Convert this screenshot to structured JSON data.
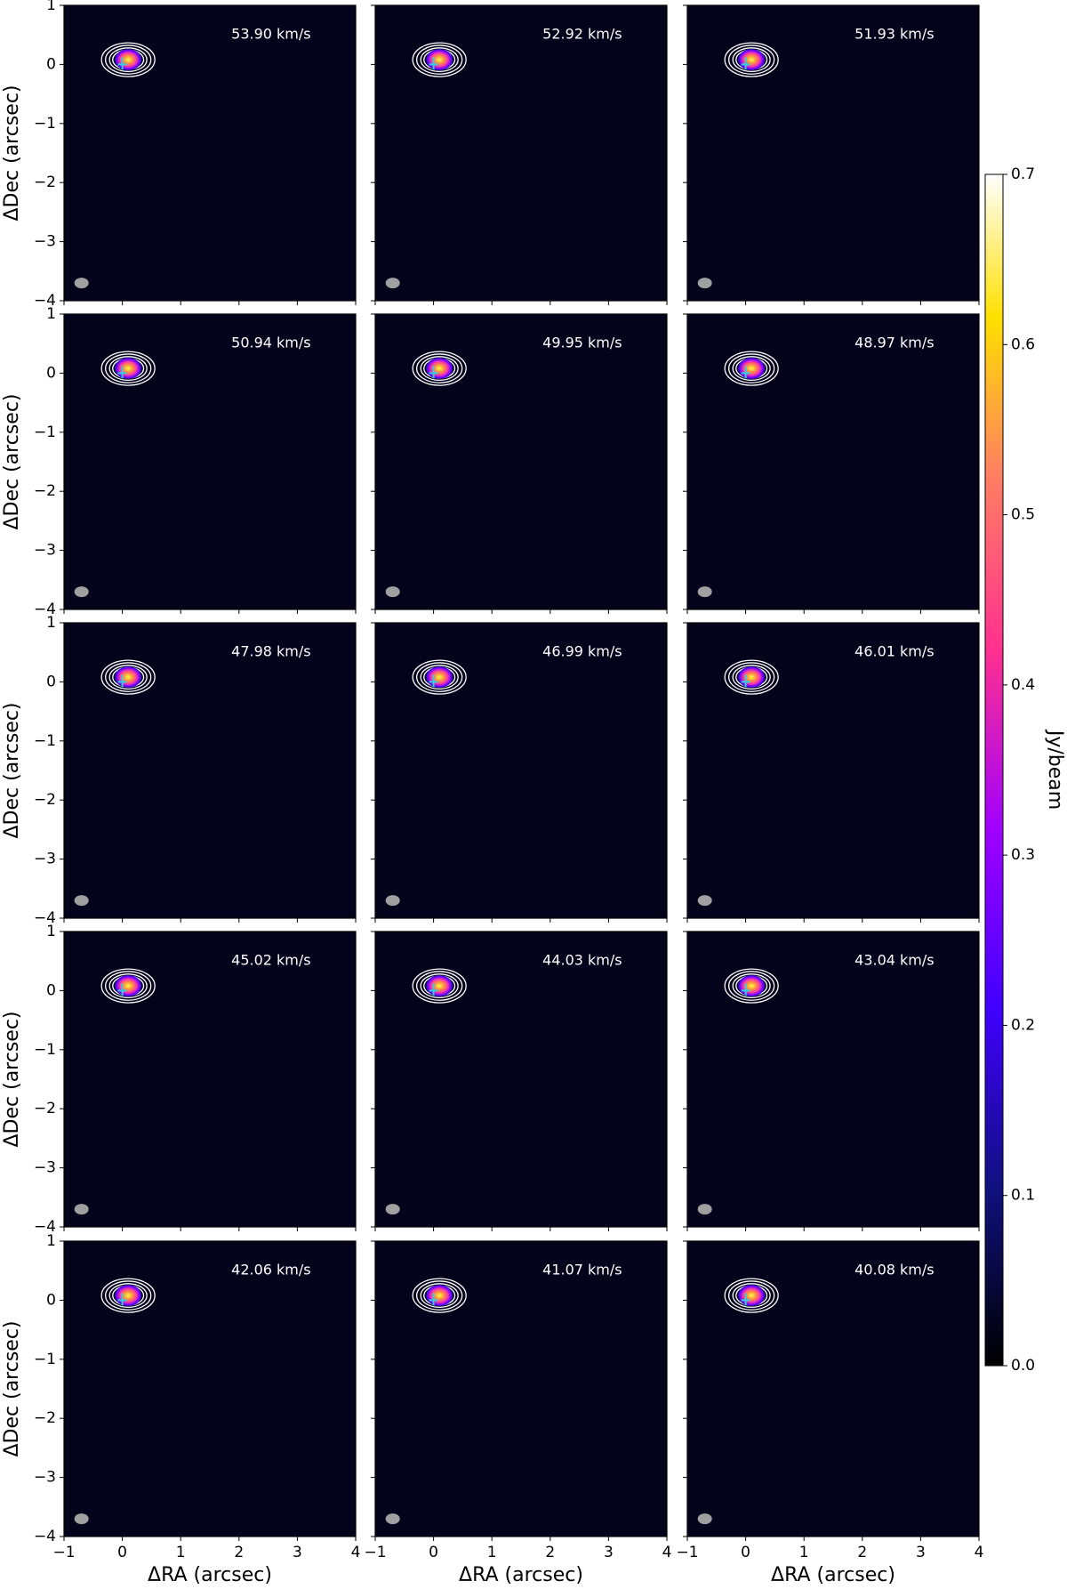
{
  "chart_data": {
    "type": "channel_map",
    "channels": [
      "53.90 km/s",
      "52.92 km/s",
      "51.93 km/s",
      "50.94 km/s",
      "49.95 km/s",
      "48.97 km/s",
      "47.98 km/s",
      "46.99 km/s",
      "46.01 km/s",
      "45.02 km/s",
      "44.03 km/s",
      "43.04 km/s",
      "42.06 km/s",
      "41.07 km/s",
      "40.08 km/s"
    ],
    "xlabel": "ΔRA (arcsec)",
    "ylabel": "ΔDec (arcsec)",
    "xlim": [
      -1,
      4
    ],
    "ylim": [
      -4,
      1
    ],
    "xticks": [
      {
        "value": -1,
        "label": "−1"
      },
      0,
      1,
      2,
      3,
      4
    ],
    "yticks": [
      {
        "value": -4,
        "label": "−4"
      },
      {
        "value": -3,
        "label": "−3"
      },
      {
        "value": -2,
        "label": "−2"
      },
      {
        "value": -1,
        "label": "−1"
      },
      0,
      1
    ],
    "colorbar": {
      "label": "Jy/beam",
      "lim": [
        0,
        0.7
      ],
      "ticks": [
        {
          "value": 0,
          "label": "0.0"
        },
        0.1,
        0.2,
        0.3,
        0.4,
        0.5,
        0.6,
        0.7
      ]
    }
  }
}
